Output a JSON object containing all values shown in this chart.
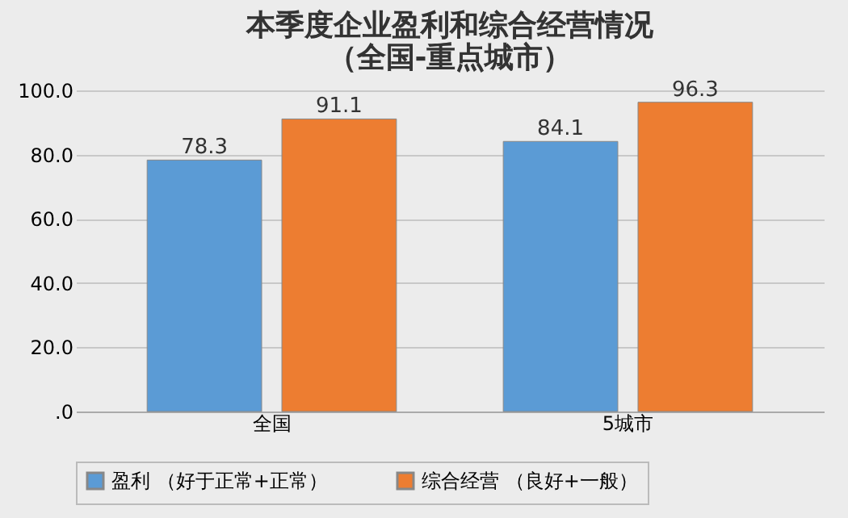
{
  "chart_data": {
    "type": "bar",
    "title": [
      "本季度企业盈利和综合经营情况",
      "（全国-重点城市）"
    ],
    "categories": [
      "全国",
      "5城市"
    ],
    "series": [
      {
        "name": "盈利 （好于正常+正常）",
        "color": "#5b9bd5",
        "values": [
          78.3,
          84.1
        ]
      },
      {
        "name": "综合经营 （良好+一般）",
        "color": "#ed7d31",
        "values": [
          91.1,
          96.3
        ]
      }
    ],
    "ylim": [
      0,
      100
    ],
    "yticks": [
      {
        "value": 0,
        "label": ".0"
      },
      {
        "value": 20,
        "label": "20.0"
      },
      {
        "value": 40,
        "label": "40.0"
      },
      {
        "value": 60,
        "label": "60.0"
      },
      {
        "value": 80,
        "label": "80.0"
      },
      {
        "value": 100,
        "label": "100.0"
      }
    ],
    "grid": "y",
    "legend": "bottom",
    "data_labels": true
  }
}
